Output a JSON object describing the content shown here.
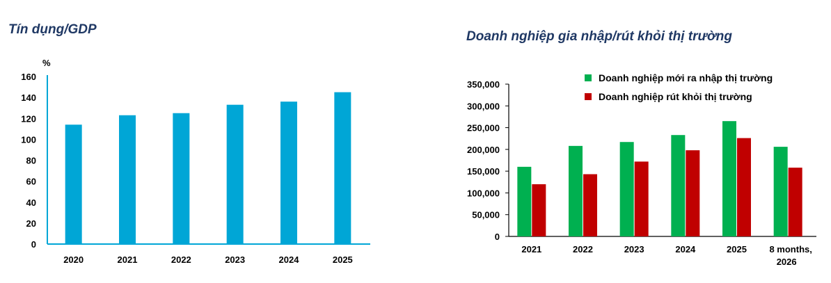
{
  "chart_data": [
    {
      "type": "bar",
      "title": "Tín dụng/GDP",
      "ylabel": "%",
      "xlabel": "",
      "ylim": [
        0,
        160
      ],
      "yticks": [
        0,
        20,
        40,
        60,
        80,
        100,
        120,
        140,
        160
      ],
      "categories": [
        "2020",
        "2021",
        "2022",
        "2023",
        "2024",
        "2025"
      ],
      "values": [
        114,
        123,
        125,
        133,
        136,
        145
      ],
      "color": "#00a6d6",
      "grid": false
    },
    {
      "type": "bar",
      "title": "Doanh nghiệp gia nhập/rút khỏi thị trường",
      "xlabel": "",
      "ylabel": "",
      "ylim": [
        0,
        350000
      ],
      "yticks": [
        "0",
        "50,000",
        "100,000",
        "150,000",
        "200,000",
        "250,000",
        "300,000",
        "350,000"
      ],
      "categories": [
        "2021",
        "2022",
        "2023",
        "2024",
        "2025",
        "8 months, 2026"
      ],
      "series": [
        {
          "name": "Doanh nghiệp mới ra nhập thị trường",
          "color": "#00b050",
          "values": [
            160000,
            208000,
            217000,
            233000,
            265000,
            206000
          ]
        },
        {
          "name": "Doanh nghiệp rút khỏi thị trường",
          "color": "#c00000",
          "values": [
            120000,
            143000,
            172000,
            198000,
            226000,
            158000
          ]
        }
      ],
      "legend": "top",
      "grid": false
    }
  ]
}
